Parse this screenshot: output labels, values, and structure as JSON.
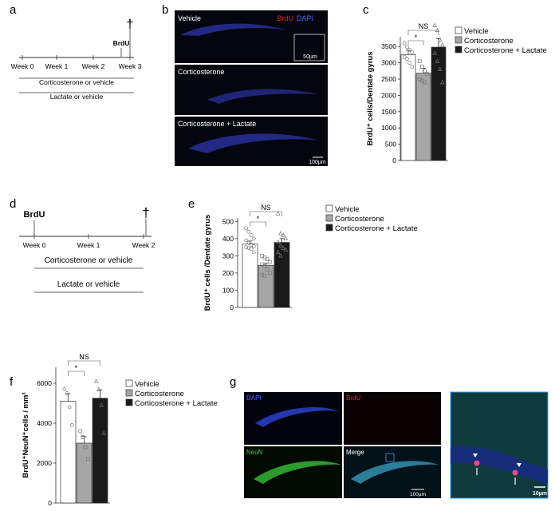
{
  "panels": {
    "a": {
      "letter": "a",
      "timeline": [
        "Week 0",
        "Week 1",
        "Week 2",
        "Week 3"
      ],
      "marker": "BrdU",
      "treatments": [
        "Corticosterone or vehicle",
        "Lactate or vehicle"
      ],
      "dagger": "†"
    },
    "b": {
      "letter": "b",
      "rows": [
        "Vehicle",
        "Corticosterone",
        "Corticosterone + Lactate"
      ],
      "stain_brdu": "BrdU",
      "stain_dapi": "DAPI",
      "inset_scale": "50µm",
      "scale": "100µm"
    },
    "c": {
      "letter": "c",
      "sig_star": "*",
      "sig_ns": "NS"
    },
    "d": {
      "letter": "d",
      "timeline": [
        "Week 0",
        "Week 1",
        "Week 2"
      ],
      "marker": "BrdU",
      "treatments": [
        "Corticosterone or vehicle",
        "Lactate or vehicle"
      ],
      "dagger": "†"
    },
    "e": {
      "letter": "e",
      "sig_star": "*",
      "sig_ns": "NS"
    },
    "f": {
      "letter": "f",
      "sig_star": "*",
      "sig_ns": "NS"
    },
    "g": {
      "letter": "g",
      "quadrants": [
        "DAPI",
        "BrdU",
        "NeuN",
        "Merge"
      ],
      "scale_main": "100µm",
      "scale_zoom": "10µm"
    }
  },
  "legend": [
    "Vehicle",
    "Corticosterone",
    "Corticosterone + Lactate"
  ],
  "colors": {
    "vehicle": "#ffffff",
    "corticosterone": "#a6a6a6",
    "cort_lactate": "#1a1a1a",
    "dapi": "#3b4fd6",
    "brdu": "#d92b2b",
    "neun": "#3fc23f"
  },
  "chart_data": [
    {
      "panel": "c",
      "type": "bar",
      "categories": [
        "Vehicle",
        "Corticosterone",
        "Corticosterone + Lactate"
      ],
      "values": [
        3250,
        2680,
        3480
      ],
      "errors": [
        130,
        150,
        260
      ],
      "ylabel": "BrdU⁺ cells/Dentate gyrus",
      "yticks": [
        0,
        500,
        1000,
        1500,
        2000,
        2500,
        3000,
        3500
      ],
      "ylim": [
        0,
        3800
      ],
      "points": [
        [
          3600,
          3480,
          3400,
          3320,
          3180,
          3120,
          3000,
          2880
        ],
        [
          3050,
          2880,
          2750,
          2650,
          2500,
          2450,
          2400
        ],
        [
          4150,
          4000,
          3700,
          3550,
          3300,
          3050,
          2800,
          2400
        ]
      ]
    },
    {
      "panel": "e",
      "type": "bar",
      "categories": [
        "Vehicle",
        "Corticosterone",
        "Corticosterone + Lactate"
      ],
      "values": [
        368,
        245,
        378
      ],
      "errors": [
        18,
        12,
        22
      ],
      "ylabel": "BrdU⁺ cells /Dentate gyrus",
      "yticks": [
        0,
        100,
        200,
        300,
        400,
        500
      ],
      "ylim": [
        0,
        520
      ],
      "points": [
        [
          460,
          440,
          420,
          400,
          390,
          375,
          365,
          355,
          350,
          345,
          340,
          320
        ],
        [
          300,
          290,
          280,
          265,
          250,
          240,
          220,
          200,
          190,
          185
        ],
        [
          545,
          430,
          420,
          400,
          380,
          360,
          345,
          335,
          320,
          300
        ]
      ]
    },
    {
      "panel": "f",
      "type": "bar",
      "categories": [
        "Vehicle",
        "Corticosterone",
        "Corticosterone + Lactate"
      ],
      "values": [
        5100,
        3000,
        5250
      ],
      "errors": [
        380,
        330,
        420
      ],
      "ylabel": "BrdU⁺NeuN⁺cells / mm³",
      "yticks": [
        0,
        2000,
        4000,
        6000
      ],
      "ylim": [
        0,
        6800
      ],
      "points": [
        [
          5700,
          5500,
          4800,
          3900
        ],
        [
          3600,
          3300,
          2800,
          2200
        ],
        [
          6100,
          5700,
          4900,
          3500
        ]
      ]
    }
  ]
}
